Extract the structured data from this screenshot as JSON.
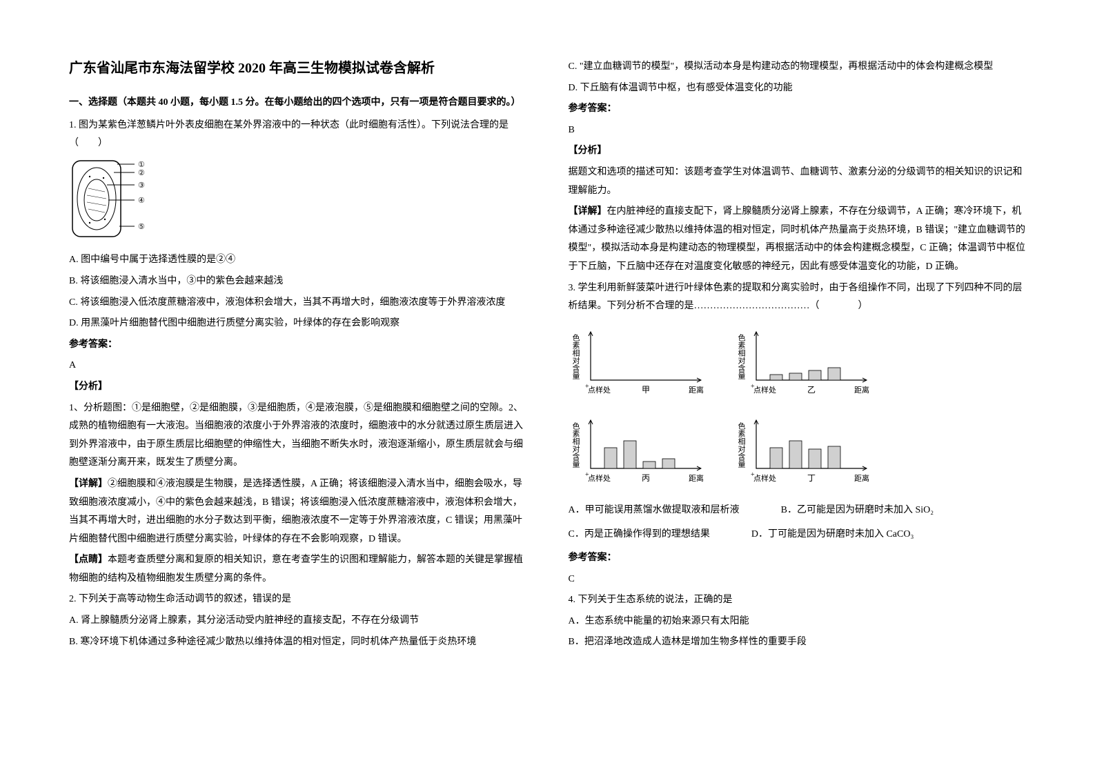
{
  "title": "广东省汕尾市东海法留学校 2020 年高三生物模拟试卷含解析",
  "section1_head": "一、选择题（本题共 40 小题，每小题 1.5 分。在每小题给出的四个选项中，只有一项是符合题目要求的。）",
  "q1": {
    "stem": "1. 图为某紫色洋葱鳞片叶外表皮细胞在某外界溶液中的一种状态（此时细胞有活性）。下列说法合理的是（　　）",
    "circled": [
      "①",
      "②",
      "③",
      "④",
      "⑤"
    ],
    "optA": "A. 图中编号中属于选择透性膜的是②④",
    "optB": "B. 将该细胞浸入清水当中，③中的紫色会越来越浅",
    "optC": "C. 将该细胞浸入低浓度蔗糖溶液中，液泡体积会增大，当其不再增大时，细胞液浓度等于外界溶液浓度",
    "optD": "D. 用黑藻叶片细胞替代图中细胞进行质壁分离实验，叶绿体的存在会影响观察",
    "answer_label": "参考答案：",
    "answer": "A",
    "analysis_label": "【分析】",
    "analysis1": "1、分析题图：①是细胞壁，②是细胞膜，③是细胞质，④是液泡膜，⑤是细胞膜和细胞壁之间的空隙。2、成熟的植物细胞有一大液泡。当细胞液的浓度小于外界溶液的浓度时，细胞液中的水分就透过原生质层进入到外界溶液中，由于原生质层比细胞壁的伸缩性大，当细胞不断失水时，液泡逐渐缩小，原生质层就会与细胞壁逐渐分离开来，既发生了质壁分离。",
    "detail_label": "【详解】",
    "detail": "②细胞膜和④液泡膜是生物膜，是选择透性膜，A 正确；将该细胞浸入清水当中，细胞会吸水，导致细胞液浓度减小，④中的紫色会越来越浅，B 错误；将该细胞浸入低浓度蔗糖溶液中，液泡体积会增大，当其不再增大时，进出细胞的水分子数达到平衡，细胞液浓度不一定等于外界溶液浓度，C 错误；用黑藻叶片细胞替代图中细胞进行质壁分离实验，叶绿体的存在不会影响观察，D 错误。",
    "point_label": "【点睛】",
    "point": "本题考查质壁分离和复原的相关知识，意在考查学生的识图和理解能力，解答本题的关键是掌握植物细胞的结构及植物细胞发生质壁分离的条件。"
  },
  "q2": {
    "stem": "2. 下列关于高等动物生命活动调节的叙述，错误的是",
    "optA": "A. 肾上腺髓质分泌肾上腺素，其分泌活动受内脏神经的直接支配，不存在分级调节",
    "optB": "B. 寒冷环境下机体通过多种途径减少散热以维持体温的相对恒定，同时机体产热量低于炎热环境",
    "optC": "C. \"建立血糖调节的模型\"，模拟活动本身是构建动态的物理模型，再根据活动中的体会构建概念模型",
    "optD": "D. 下丘脑有体温调节中枢，也有感受体温变化的功能",
    "answer_label": "参考答案：",
    "answer": "B",
    "analysis_label": "【分析】",
    "analysis": "据题文和选项的描述可知：该题考查学生对体温调节、血糖调节、激素分泌的分级调节的相关知识的识记和理解能力。",
    "detail_label": "【详解】",
    "detail": "在内脏神经的直接支配下，肾上腺髓质分泌肾上腺素，不存在分级调节，A 正确；寒冷环境下，机体通过多种途径减少散热以维持体温的相对恒定，同时机体产热量高于炎热环境，B 错误；\"建立血糖调节的模型\"，模拟活动本身是构建动态的物理模型，再根据活动中的体会构建概念模型，C 正确；体温调节中枢位于下丘脑，下丘脑中还存在对温度变化敏感的神经元，因此有感受体温变化的功能，D 正确。"
  },
  "q3": {
    "stem": "3. 学生利用新鲜菠菜叶进行叶绿体色素的提取和分离实验时，由于各组操作不同，出现了下列四种不同的层析结果。下列分析不合理的是………………………………（　　　　）",
    "axis_y": "色素相对含量",
    "axis_x": "距离",
    "origin": "点样处",
    "labels": [
      "甲",
      "乙",
      "丙",
      "丁"
    ],
    "optA": "A．甲可能误用蒸馏水做提取液和层析液",
    "optB": "B．乙可能是因为研磨时未加入 SiO₂",
    "optC": "C．丙是正确操作得到的理想结果",
    "optD": "D．丁可能是因为研磨时未加入 CaCO₃",
    "answer_label": "参考答案：",
    "answer": "C",
    "chart_colors": {
      "bar_fill": "#d0d0d0",
      "bar_stroke": "#000000",
      "axis": "#000000",
      "bg": "#ffffff"
    },
    "charts": {
      "jia": {
        "bars": [
          0,
          0,
          0,
          0
        ]
      },
      "yi": {
        "bars": [
          8,
          10,
          14,
          18
        ]
      },
      "bing": {
        "bars": [
          30,
          40,
          10,
          14
        ]
      },
      "ding": {
        "bars": [
          30,
          40,
          28,
          32
        ]
      }
    }
  },
  "q4": {
    "stem": "4. 下列关于生态系统的说法，正确的是",
    "optA": "A．生态系统中能量的初始来源只有太阳能",
    "optB": "B．把沼泽地改造成人造林是增加生物多样性的重要手段"
  }
}
